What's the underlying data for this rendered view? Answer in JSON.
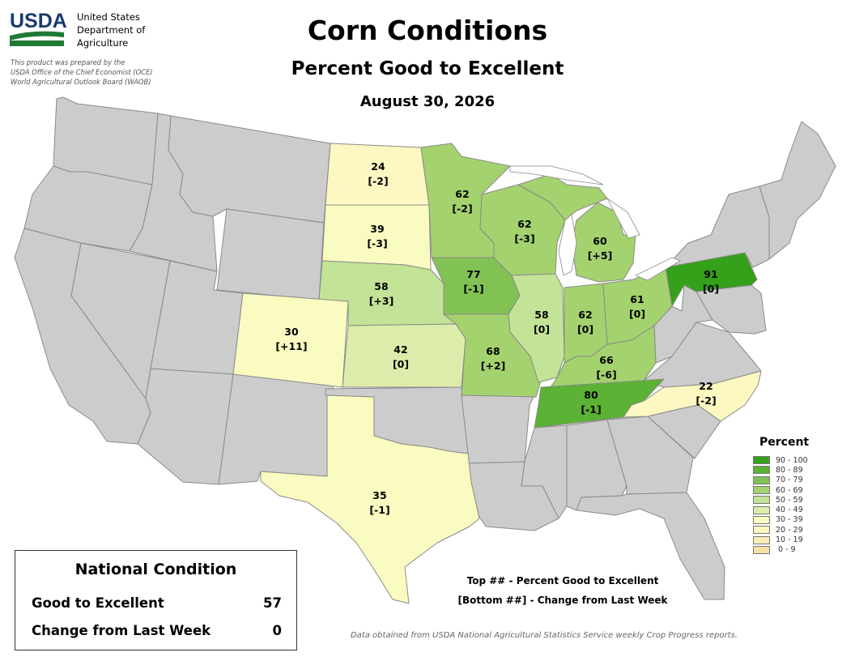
{
  "header": {
    "agency_abbrev": "USDA",
    "agency_lines": [
      "United States",
      "Department of",
      "Agriculture"
    ],
    "prepared_by": [
      "This product was prepared by the",
      "USDA Office of the Chief Economist (OCE)",
      "World Agricultural Outlook Board (WAOB)"
    ]
  },
  "title": "Corn Conditions",
  "subtitle": "Percent Good to Excellent",
  "date": "August 30, 2026",
  "legend": {
    "title": "Percent",
    "bins": [
      {
        "label": "90 - 100",
        "color": "#35a019"
      },
      {
        "label": "80 - 89",
        "color": "#5bb234"
      },
      {
        "label": "70 - 79",
        "color": "#82c255"
      },
      {
        "label": "60 - 69",
        "color": "#a4d26f"
      },
      {
        "label": "50 - 59",
        "color": "#c3e396"
      },
      {
        "label": "40 - 49",
        "color": "#dcedab"
      },
      {
        "label": "30 - 39",
        "color": "#f9fbc0"
      },
      {
        "label": "20 - 29",
        "color": "#fdf7c1"
      },
      {
        "label": "10 - 19",
        "color": "#fbedb7"
      },
      {
        "label": " 0 - 9",
        "color": "#f7e0a8"
      }
    ]
  },
  "states": [
    {
      "state": "ND",
      "value": "24",
      "change": "[-2]"
    },
    {
      "state": "SD",
      "value": "39",
      "change": "[-3]"
    },
    {
      "state": "NE",
      "value": "58",
      "change": "[+3]"
    },
    {
      "state": "KS",
      "value": "42",
      "change": "[0]"
    },
    {
      "state": "CO",
      "value": "30",
      "change": "[+11]"
    },
    {
      "state": "TX",
      "value": "35",
      "change": "[-1]"
    },
    {
      "state": "MN",
      "value": "62",
      "change": "[-2]"
    },
    {
      "state": "IA",
      "value": "77",
      "change": "[-1]"
    },
    {
      "state": "MO",
      "value": "68",
      "change": "[+2]"
    },
    {
      "state": "WI",
      "value": "62",
      "change": "[-3]"
    },
    {
      "state": "IL",
      "value": "58",
      "change": "[0]"
    },
    {
      "state": "MI",
      "value": "60",
      "change": "[+5]"
    },
    {
      "state": "IN",
      "value": "62",
      "change": "[0]"
    },
    {
      "state": "OH",
      "value": "61",
      "change": "[0]"
    },
    {
      "state": "KY",
      "value": "66",
      "change": "[-6]"
    },
    {
      "state": "TN",
      "value": "80",
      "change": "[-1]"
    },
    {
      "state": "NC",
      "value": "22",
      "change": "[-2]"
    },
    {
      "state": "PA",
      "value": "91",
      "change": "[0]"
    }
  ],
  "key": {
    "top": "Top ## - Percent Good to Excellent",
    "bottom": "[Bottom ##] - Change from Last Week"
  },
  "national": {
    "title": "National Condition",
    "rows": [
      {
        "label": "Good to Excellent",
        "value": "57"
      },
      {
        "label": "Change from Last Week",
        "value": "0"
      }
    ]
  },
  "footnote": "Data obtained from USDA National Agricultural Statistics Service weekly Crop Progress reports."
}
